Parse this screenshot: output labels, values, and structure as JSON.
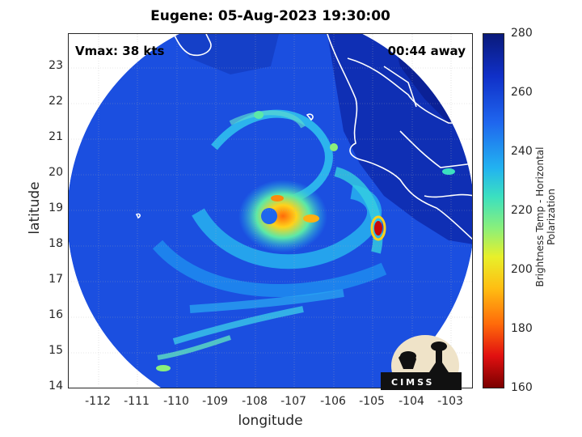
{
  "title": "Eugene: 05-Aug-2023 19:30:00",
  "vmax_text": "Vmax: 38 kts",
  "time_text": "00:44 away",
  "x_axis": {
    "label": "longitude",
    "ticks": [
      "-112",
      "-111",
      "-110",
      "-109",
      "-108",
      "-107",
      "-106",
      "-105",
      "-104",
      "-103"
    ]
  },
  "y_axis": {
    "label": "latitude",
    "ticks": [
      "23",
      "22",
      "21",
      "20",
      "19",
      "18",
      "17",
      "16",
      "15",
      "14"
    ]
  },
  "colorbar": {
    "label": "Brightness Temp - Horizontal Polarization",
    "ticks": [
      "280",
      "260",
      "240",
      "220",
      "200",
      "180",
      "160"
    ],
    "min": 160,
    "max": 280,
    "colors": [
      "#0a1a7a",
      "#1f66ee",
      "#22b3f0",
      "#8bf07a",
      "#ffbd12",
      "#e11010",
      "#7a0000"
    ]
  },
  "logo_text": "CIMSS",
  "map": {
    "xlim": [
      -112.7,
      -102.3
    ],
    "ylim": [
      13.9,
      23.8
    ],
    "storm_center": {
      "lon": -107.4,
      "lat": 18.8
    }
  }
}
